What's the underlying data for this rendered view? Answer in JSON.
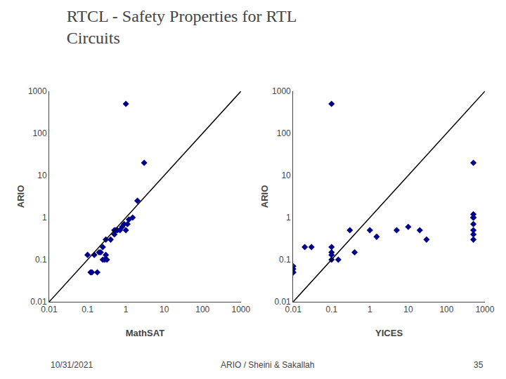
{
  "title": [
    "RTCL - Safety Properties for RTL",
    "Circuits"
  ],
  "footer": [
    "10/31/2021",
    "ARIO / Sheini & Sakallah",
    "35"
  ],
  "chart_data": [
    {
      "type": "scatter",
      "xlabel": "MathSAT",
      "ylabel": "ARIO",
      "log": true,
      "grid": false,
      "xlim": [
        0.01,
        1000
      ],
      "ylim": [
        0.01,
        1000
      ],
      "xticks": [
        0.01,
        0.1,
        1,
        10,
        100,
        1000
      ],
      "yticks": [
        0.01,
        0.1,
        1,
        10,
        100,
        1000
      ],
      "series": [
        {
          "type": "scatter",
          "color": "#00008B",
          "marker": "diamond",
          "x": [
            0.1,
            0.12,
            0.13,
            0.15,
            0.18,
            0.2,
            0.22,
            0.25,
            0.25,
            0.28,
            0.3,
            0.3,
            0.32,
            0.4,
            0.5,
            0.5,
            0.55,
            0.6,
            0.7,
            0.8,
            0.9,
            1.0,
            1.1,
            1.2,
            1.5,
            2.0,
            3.0,
            1.0
          ],
          "values": [
            0.13,
            0.05,
            0.05,
            0.13,
            0.05,
            0.15,
            0.15,
            0.1,
            0.2,
            0.1,
            0.3,
            0.13,
            0.1,
            0.3,
            0.5,
            0.4,
            0.5,
            0.5,
            0.5,
            0.6,
            0.7,
            0.5,
            0.7,
            0.9,
            1.0,
            2.5,
            20.0,
            500.0
          ]
        },
        {
          "type": "line",
          "color": "#000000",
          "line_style": "solid",
          "x": [
            0.01,
            1000
          ],
          "values": [
            0.01,
            1000
          ]
        }
      ]
    },
    {
      "type": "scatter",
      "xlabel": "YICES",
      "ylabel": "ARIO",
      "log": true,
      "grid": false,
      "xlim": [
        0.01,
        1000
      ],
      "ylim": [
        0.01,
        1000
      ],
      "xticks": [
        0.01,
        0.1,
        1,
        10,
        100,
        1000
      ],
      "yticks": [
        0.01,
        0.1,
        1,
        10,
        100,
        1000
      ],
      "series": [
        {
          "type": "scatter",
          "color": "#00008B",
          "marker": "diamond",
          "x": [
            0.01,
            0.01,
            0.01,
            0.01,
            0.02,
            0.03,
            0.1,
            0.1,
            0.1,
            0.1,
            0.15,
            0.3,
            0.4,
            1.0,
            1.5,
            5.0,
            10.0,
            20.0,
            30.0,
            0.1,
            500.0,
            500.0,
            500.0,
            500.0,
            500.0,
            500.0,
            500.0,
            500.0
          ],
          "values": [
            0.05,
            0.05,
            0.06,
            0.07,
            0.2,
            0.2,
            0.13,
            0.15,
            0.1,
            0.2,
            0.1,
            0.5,
            0.15,
            0.5,
            0.35,
            0.5,
            0.6,
            0.5,
            0.3,
            500.0,
            0.3,
            0.4,
            0.5,
            0.7,
            1.0,
            1.0,
            1.2,
            20.0
          ]
        },
        {
          "type": "line",
          "color": "#000000",
          "line_style": "solid",
          "x": [
            0.01,
            1000
          ],
          "values": [
            0.01,
            1000
          ]
        }
      ]
    }
  ]
}
